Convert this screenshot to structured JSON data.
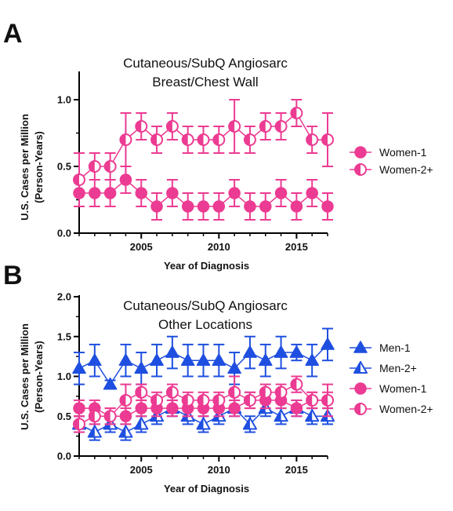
{
  "chart_data": [
    {
      "panel_label": "A",
      "type": "line",
      "title": [
        "Cutaneous/SubQ Angiosarc",
        "Breast/Chest Wall"
      ],
      "xlabel": "Year of Diagnosis",
      "ylabel": [
        "U.S. Cases per Million",
        "(Person-Years)"
      ],
      "xlim": [
        2001,
        2017
      ],
      "ylim": [
        0,
        1.2
      ],
      "x_ticks": [
        2005,
        2010,
        2015
      ],
      "x_tick_labels": [
        "2005",
        "2010",
        "2015"
      ],
      "y_ticks": [
        0,
        0.5,
        1.0
      ],
      "y_tick_labels": [
        "0.0",
        "0.5",
        "1.0"
      ],
      "legend_position": "right",
      "grid": false,
      "x": [
        2001,
        2002,
        2003,
        2004,
        2005,
        2006,
        2007,
        2008,
        2009,
        2010,
        2011,
        2012,
        2013,
        2014,
        2015,
        2016,
        2017
      ],
      "series": [
        {
          "name": "Women-1",
          "marker": "circle-filled",
          "color": "#ec3b92",
          "values": [
            0.3,
            0.3,
            0.3,
            0.4,
            0.3,
            0.2,
            0.3,
            0.2,
            0.2,
            0.2,
            0.3,
            0.2,
            0.2,
            0.3,
            0.2,
            0.3,
            0.2
          ],
          "error": [
            0.1,
            0.1,
            0.1,
            0.1,
            0.1,
            0.1,
            0.1,
            0.1,
            0.1,
            0.1,
            0.1,
            0.1,
            0.1,
            0.1,
            0.1,
            0.1,
            0.1
          ]
        },
        {
          "name": "Women-2+",
          "marker": "circle-half",
          "color": "#ec3b92",
          "values": [
            0.4,
            0.5,
            0.5,
            0.7,
            0.8,
            0.7,
            0.8,
            0.7,
            0.7,
            0.7,
            0.8,
            0.7,
            0.8,
            0.8,
            0.9,
            0.7,
            0.7
          ],
          "error": [
            0.2,
            0.1,
            0.1,
            0.2,
            0.1,
            0.1,
            0.1,
            0.1,
            0.1,
            0.1,
            0.2,
            0.1,
            0.1,
            0.1,
            0.1,
            0.1,
            0.2
          ]
        }
      ]
    },
    {
      "panel_label": "B",
      "type": "line",
      "title": [
        "Cutaneous/SubQ Angiosarc",
        "Other Locations"
      ],
      "xlabel": "Year of Diagnosis",
      "ylabel": [
        "U.S. Cases per Million",
        "(Person-Years)"
      ],
      "xlim": [
        2001,
        2017
      ],
      "ylim": [
        0,
        2.0
      ],
      "x_ticks": [
        2005,
        2010,
        2015
      ],
      "x_tick_labels": [
        "2005",
        "2010",
        "2015"
      ],
      "y_ticks": [
        0,
        0.5,
        1.0,
        1.5,
        2.0
      ],
      "y_tick_labels": [
        "0.0",
        "0.5",
        "1.0",
        "1.5",
        "2.0"
      ],
      "legend_position": "right",
      "grid": false,
      "x": [
        2001,
        2002,
        2003,
        2004,
        2005,
        2006,
        2007,
        2008,
        2009,
        2010,
        2011,
        2012,
        2013,
        2014,
        2015,
        2016,
        2017
      ],
      "series": [
        {
          "name": "Men-1",
          "marker": "triangle-filled",
          "color": "#1f4fe0",
          "values": [
            1.1,
            1.2,
            0.9,
            1.2,
            1.1,
            1.2,
            1.3,
            1.2,
            1.2,
            1.2,
            1.1,
            1.3,
            1.2,
            1.3,
            1.3,
            1.2,
            1.4
          ],
          "error": [
            0.2,
            0.2,
            0.05,
            0.2,
            0.2,
            0.2,
            0.2,
            0.2,
            0.2,
            0.2,
            0.2,
            0.2,
            0.2,
            0.2,
            0.1,
            0.2,
            0.2
          ]
        },
        {
          "name": "Men-2+",
          "marker": "triangle-half",
          "color": "#1f4fe0",
          "values": [
            0.4,
            0.3,
            0.4,
            0.3,
            0.4,
            0.5,
            0.6,
            0.5,
            0.4,
            0.5,
            0.6,
            0.4,
            0.6,
            0.5,
            0.6,
            0.5,
            0.5
          ],
          "error": [
            0.1,
            0.1,
            0.1,
            0.1,
            0.1,
            0.1,
            0.1,
            0.1,
            0.1,
            0.1,
            0.1,
            0.1,
            0.1,
            0.1,
            0.1,
            0.1,
            0.1
          ]
        },
        {
          "name": "Women-1",
          "marker": "circle-filled",
          "color": "#ec3b92",
          "values": [
            0.6,
            0.6,
            0.5,
            0.5,
            0.6,
            0.6,
            0.6,
            0.6,
            0.6,
            0.6,
            0.6,
            0.7,
            0.7,
            0.7,
            0.6,
            0.7,
            0.7
          ],
          "error": [
            0.1,
            0.1,
            0.1,
            0.1,
            0.1,
            0.1,
            0.1,
            0.1,
            0.1,
            0.1,
            0.1,
            0.1,
            0.1,
            0.1,
            0.1,
            0.1,
            0.1
          ]
        },
        {
          "name": "Women-2+",
          "marker": "circle-half",
          "color": "#ec3b92",
          "values": [
            0.4,
            0.5,
            0.5,
            0.7,
            0.8,
            0.7,
            0.8,
            0.7,
            0.7,
            0.7,
            0.8,
            0.7,
            0.8,
            0.8,
            0.9,
            0.7,
            0.7
          ],
          "error": [
            0.1,
            0.1,
            0.1,
            0.2,
            0.1,
            0.1,
            0.1,
            0.1,
            0.1,
            0.1,
            0.2,
            0.1,
            0.1,
            0.1,
            0.1,
            0.1,
            0.2
          ]
        }
      ]
    }
  ]
}
